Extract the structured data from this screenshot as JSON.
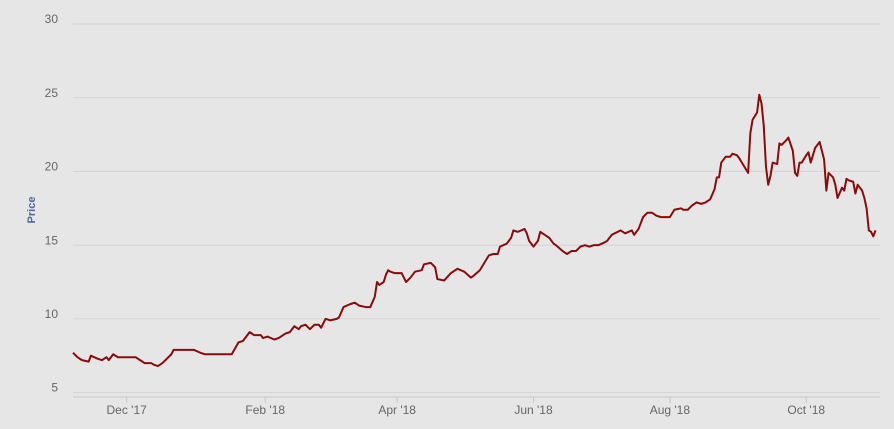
{
  "chart_data": {
    "type": "line",
    "y_label": "Price",
    "color": "#8b0a0a",
    "grid": true,
    "xlim": [
      -24,
      337
    ],
    "ylim": [
      4.7,
      30
    ],
    "xticks": [
      {
        "value": 0,
        "label": "Dec '17"
      },
      {
        "value": 62,
        "label": "Feb '18"
      },
      {
        "value": 121,
        "label": "Apr '18"
      },
      {
        "value": 182,
        "label": "Jun '18"
      },
      {
        "value": 243,
        "label": "Aug '18"
      },
      {
        "value": 304,
        "label": "Oct '18"
      }
    ],
    "yticks": [
      5,
      10,
      15,
      20,
      25,
      30
    ],
    "x": [
      -24,
      -22,
      -20,
      -17,
      -16,
      -13,
      -11,
      -9,
      -8,
      -6,
      -4,
      -1,
      4,
      6,
      8,
      11,
      12,
      14,
      16,
      18,
      20,
      21,
      26,
      30,
      33,
      35,
      39,
      47,
      50,
      52,
      55,
      57,
      60,
      61,
      63,
      66,
      68,
      71,
      73,
      75,
      77,
      78,
      80,
      82,
      84,
      86,
      87,
      89,
      91,
      94,
      95,
      97,
      100,
      102,
      104,
      107,
      109,
      111,
      112,
      113,
      115,
      116,
      117,
      118,
      120,
      123,
      125,
      127,
      129,
      132,
      133,
      136,
      138,
      139,
      142,
      145,
      148,
      151,
      154,
      155,
      158,
      160,
      162,
      164,
      166,
      167,
      170,
      172,
      173,
      175,
      178,
      179,
      180,
      182,
      184,
      185,
      187,
      189,
      191,
      192,
      195,
      197,
      199,
      201,
      203,
      205,
      207,
      209,
      211,
      214,
      215,
      217,
      221,
      223,
      226,
      227,
      229,
      231,
      233,
      235,
      237,
      239,
      241,
      243,
      245,
      248,
      249,
      251,
      253,
      255,
      257,
      259,
      261,
      263,
      264,
      265,
      266,
      268,
      270,
      271,
      273,
      274,
      276,
      278,
      279,
      280,
      282,
      283,
      284,
      285,
      286,
      287,
      288,
      289,
      291,
      292,
      293,
      295,
      296,
      298,
      299,
      300,
      301,
      302,
      304,
      305,
      306,
      307,
      308,
      310,
      312,
      313,
      314,
      316,
      317,
      318,
      320,
      321,
      322,
      323,
      325,
      326,
      327,
      329,
      330,
      331,
      332,
      333,
      334,
      335
    ],
    "values": [
      7.7,
      7.4,
      7.2,
      7.1,
      7.5,
      7.3,
      7.2,
      7.4,
      7.2,
      7.6,
      7.4,
      7.4,
      7.4,
      7.2,
      7.0,
      7.0,
      6.9,
      6.8,
      7.0,
      7.3,
      7.6,
      7.9,
      7.9,
      7.9,
      7.7,
      7.6,
      7.6,
      7.6,
      8.4,
      8.5,
      9.1,
      8.9,
      8.9,
      8.7,
      8.8,
      8.6,
      8.7,
      9.0,
      9.1,
      9.5,
      9.3,
      9.5,
      9.6,
      9.3,
      9.6,
      9.6,
      9.4,
      10.0,
      9.9,
      10.0,
      10.1,
      10.8,
      11.0,
      11.1,
      10.9,
      10.8,
      10.8,
      11.5,
      12.5,
      12.3,
      12.5,
      13.0,
      13.3,
      13.2,
      13.1,
      13.1,
      12.5,
      12.8,
      13.2,
      13.3,
      13.7,
      13.8,
      13.5,
      12.7,
      12.6,
      13.1,
      13.4,
      13.2,
      12.8,
      12.9,
      13.3,
      13.8,
      14.3,
      14.4,
      14.4,
      14.9,
      15.1,
      15.5,
      16.0,
      15.9,
      16.1,
      15.8,
      15.3,
      14.9,
      15.3,
      15.9,
      15.7,
      15.5,
      15.1,
      15.0,
      14.6,
      14.4,
      14.6,
      14.6,
      14.9,
      15.0,
      14.9,
      15.0,
      15.0,
      15.2,
      15.3,
      15.7,
      16.0,
      15.8,
      16.0,
      15.7,
      16.1,
      16.9,
      17.2,
      17.2,
      17.0,
      16.9,
      16.9,
      16.9,
      17.4,
      17.5,
      17.4,
      17.4,
      17.7,
      17.9,
      17.8,
      17.9,
      18.1,
      18.8,
      19.6,
      19.6,
      20.6,
      21.0,
      21.0,
      21.2,
      21.1,
      20.9,
      20.4,
      19.9,
      22.6,
      23.5,
      24.0,
      25.2,
      24.6,
      23.1,
      20.3,
      19.1,
      19.7,
      20.6,
      20.5,
      21.9,
      21.8,
      22.1,
      22.3,
      21.4,
      19.9,
      19.7,
      20.6,
      20.6,
      21.1,
      21.3,
      20.6,
      21.1,
      21.6,
      22.0,
      20.8,
      18.7,
      19.9,
      19.6,
      19.1,
      18.2,
      18.9,
      18.7,
      19.5,
      19.4,
      19.3,
      18.5,
      19.1,
      18.7,
      18.2,
      17.5,
      16.0,
      15.9,
      15.6,
      16.0
    ]
  }
}
